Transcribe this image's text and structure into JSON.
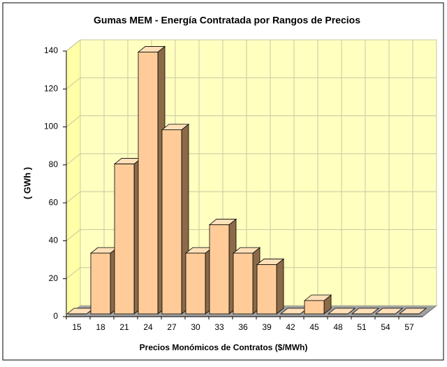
{
  "chart_data": {
    "type": "bar",
    "title": "Gumas MEM - Energía Contratada por Rangos de Precios",
    "x_label": "Precios Monómicos de Contratos ($/MWh)",
    "y_label": "( GWh )",
    "categories": [
      "15",
      "18",
      "21",
      "24",
      "27",
      "30",
      "33",
      "36",
      "39",
      "42",
      "45",
      "48",
      "51",
      "54",
      "57"
    ],
    "values": [
      0,
      32,
      79,
      138,
      97,
      32,
      47,
      32,
      26,
      0,
      7,
      0,
      0,
      0,
      0
    ],
    "color": "#ffcc99",
    "ylim": [
      0,
      140
    ],
    "yticks": [
      0,
      20,
      40,
      60,
      80,
      100,
      120,
      140
    ],
    "grid": true
  }
}
